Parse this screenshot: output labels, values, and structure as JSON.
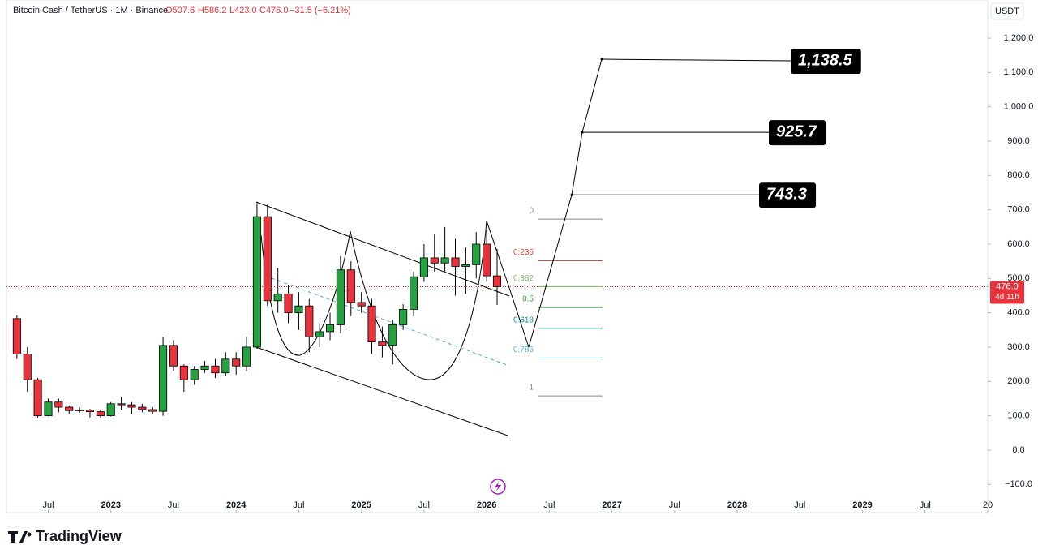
{
  "chart_data": {
    "type": "candlestick",
    "header": {
      "symbol": "Bitcoin Cash / TetherUS · 1M · Binance",
      "ohlc": [
        "O507.6",
        "H586.2",
        "L423.0",
        "C476.0",
        "−31.5 (−6.21%)"
      ]
    },
    "currency": "USDT",
    "brand": "TradingView",
    "x": [
      "2022-04",
      "2022-05",
      "2022-06",
      "2022-07",
      "2022-08",
      "2022-09",
      "2022-10",
      "2022-11",
      "2022-12",
      "2023-01",
      "2023-02",
      "2023-03",
      "2023-04",
      "2023-05",
      "2023-06",
      "2023-07",
      "2023-08",
      "2023-09",
      "2023-10",
      "2023-11",
      "2023-12",
      "2024-01",
      "2024-02",
      "2024-03",
      "2024-04",
      "2024-05",
      "2024-06",
      "2024-07",
      "2024-08",
      "2024-09",
      "2024-10",
      "2024-11",
      "2024-12",
      "2025-01",
      "2025-02",
      "2025-03",
      "2025-04",
      "2025-05",
      "2025-06",
      "2025-07",
      "2025-08",
      "2025-09",
      "2025-10",
      "2025-11",
      "2025-12",
      "2026-01",
      "2026-02"
    ],
    "open": [
      383,
      280,
      205,
      100,
      140,
      125,
      115,
      117,
      112,
      100,
      135,
      132,
      125,
      118,
      113,
      305,
      245,
      205,
      235,
      245,
      225,
      265,
      245,
      300,
      680,
      435,
      455,
      400,
      420,
      330,
      345,
      365,
      525,
      430,
      420,
      315,
      305,
      365,
      410,
      505,
      560,
      545,
      560,
      535,
      540,
      600,
      507.6
    ],
    "high": [
      392,
      300,
      210,
      150,
      150,
      130,
      125,
      120,
      118,
      140,
      155,
      140,
      135,
      125,
      330,
      320,
      250,
      245,
      260,
      265,
      285,
      285,
      330,
      720,
      715,
      530,
      480,
      460,
      440,
      370,
      400,
      565,
      550,
      460,
      440,
      360,
      380,
      425,
      520,
      600,
      630,
      650,
      615,
      590,
      635,
      640,
      586.2
    ],
    "low": [
      265,
      170,
      95,
      98,
      110,
      105,
      108,
      95,
      95,
      98,
      118,
      105,
      110,
      105,
      100,
      230,
      170,
      190,
      225,
      210,
      215,
      220,
      230,
      295,
      420,
      400,
      370,
      350,
      285,
      300,
      320,
      340,
      390,
      400,
      280,
      270,
      250,
      350,
      390,
      490,
      520,
      520,
      450,
      455,
      500,
      490,
      423.0
    ],
    "close": [
      280,
      205,
      100,
      140,
      125,
      115,
      117,
      112,
      100,
      135,
      132,
      125,
      118,
      113,
      305,
      245,
      205,
      235,
      245,
      225,
      265,
      245,
      300,
      680,
      435,
      455,
      400,
      420,
      330,
      345,
      365,
      525,
      430,
      420,
      315,
      305,
      365,
      410,
      505,
      560,
      545,
      560,
      535,
      540,
      600,
      507.6,
      476.0
    ],
    "colors": {
      "up": "#26a142",
      "down": "#e8333c",
      "wick": "#000000"
    },
    "xlim": [
      "2022-03",
      "2030-01"
    ],
    "xticks": [
      {
        "value": "2022-07",
        "label": "Jul"
      },
      {
        "value": "2023-01",
        "label": "2023"
      },
      {
        "value": "2023-07",
        "label": "Jul"
      },
      {
        "value": "2024-01",
        "label": "2024"
      },
      {
        "value": "2024-07",
        "label": "Jul"
      },
      {
        "value": "2025-01",
        "label": "2025"
      },
      {
        "value": "2025-07",
        "label": "Jul"
      },
      {
        "value": "2026-01",
        "label": "2026"
      },
      {
        "value": "2026-07",
        "label": "Jul"
      },
      {
        "value": "2027-01",
        "label": "2027"
      },
      {
        "value": "2027-07",
        "label": "Jul"
      },
      {
        "value": "2028-01",
        "label": "2028"
      },
      {
        "value": "2028-07",
        "label": "Jul"
      },
      {
        "value": "2029-01",
        "label": "2029"
      },
      {
        "value": "2029-07",
        "label": "Jul"
      },
      {
        "value": "2030-01",
        "label": "20"
      }
    ],
    "ylim": [
      -182,
      1311
    ],
    "yticks": [
      {
        "value": -100,
        "label": "−100.0"
      },
      {
        "value": 0,
        "label": "0.0"
      },
      {
        "value": 100,
        "label": "100.0"
      },
      {
        "value": 200,
        "label": "200.0"
      },
      {
        "value": 300,
        "label": "300.0"
      },
      {
        "value": 400,
        "label": "400.0"
      },
      {
        "value": 500,
        "label": "500.0"
      },
      {
        "value": 600,
        "label": "600.0"
      },
      {
        "value": 700,
        "label": "700.0"
      },
      {
        "value": 800,
        "label": "800.0"
      },
      {
        "value": 900,
        "label": "900.0"
      },
      {
        "value": 1000,
        "label": "1,000.0"
      },
      {
        "value": 1100,
        "label": "1,100.0"
      },
      {
        "value": 1200,
        "label": "1,200.0"
      }
    ],
    "last_price": {
      "value": 476.0,
      "label": "476.0",
      "countdown": "4d 11h"
    },
    "fib": {
      "high": 673,
      "low": 158,
      "levels": [
        0,
        0.236,
        0.382,
        0.5,
        0.618,
        0.786,
        1
      ],
      "colors": [
        "#888888",
        "#e0473a",
        "#7dbb6e",
        "#2e9e3f",
        "#138a8a",
        "#5ab3d9",
        "#888888"
      ]
    },
    "targets": [
      {
        "value": 1138.5,
        "label": "1,138.5"
      },
      {
        "value": 925.7,
        "label": "925.7"
      },
      {
        "value": 743.3,
        "label": "743.3"
      }
    ]
  }
}
